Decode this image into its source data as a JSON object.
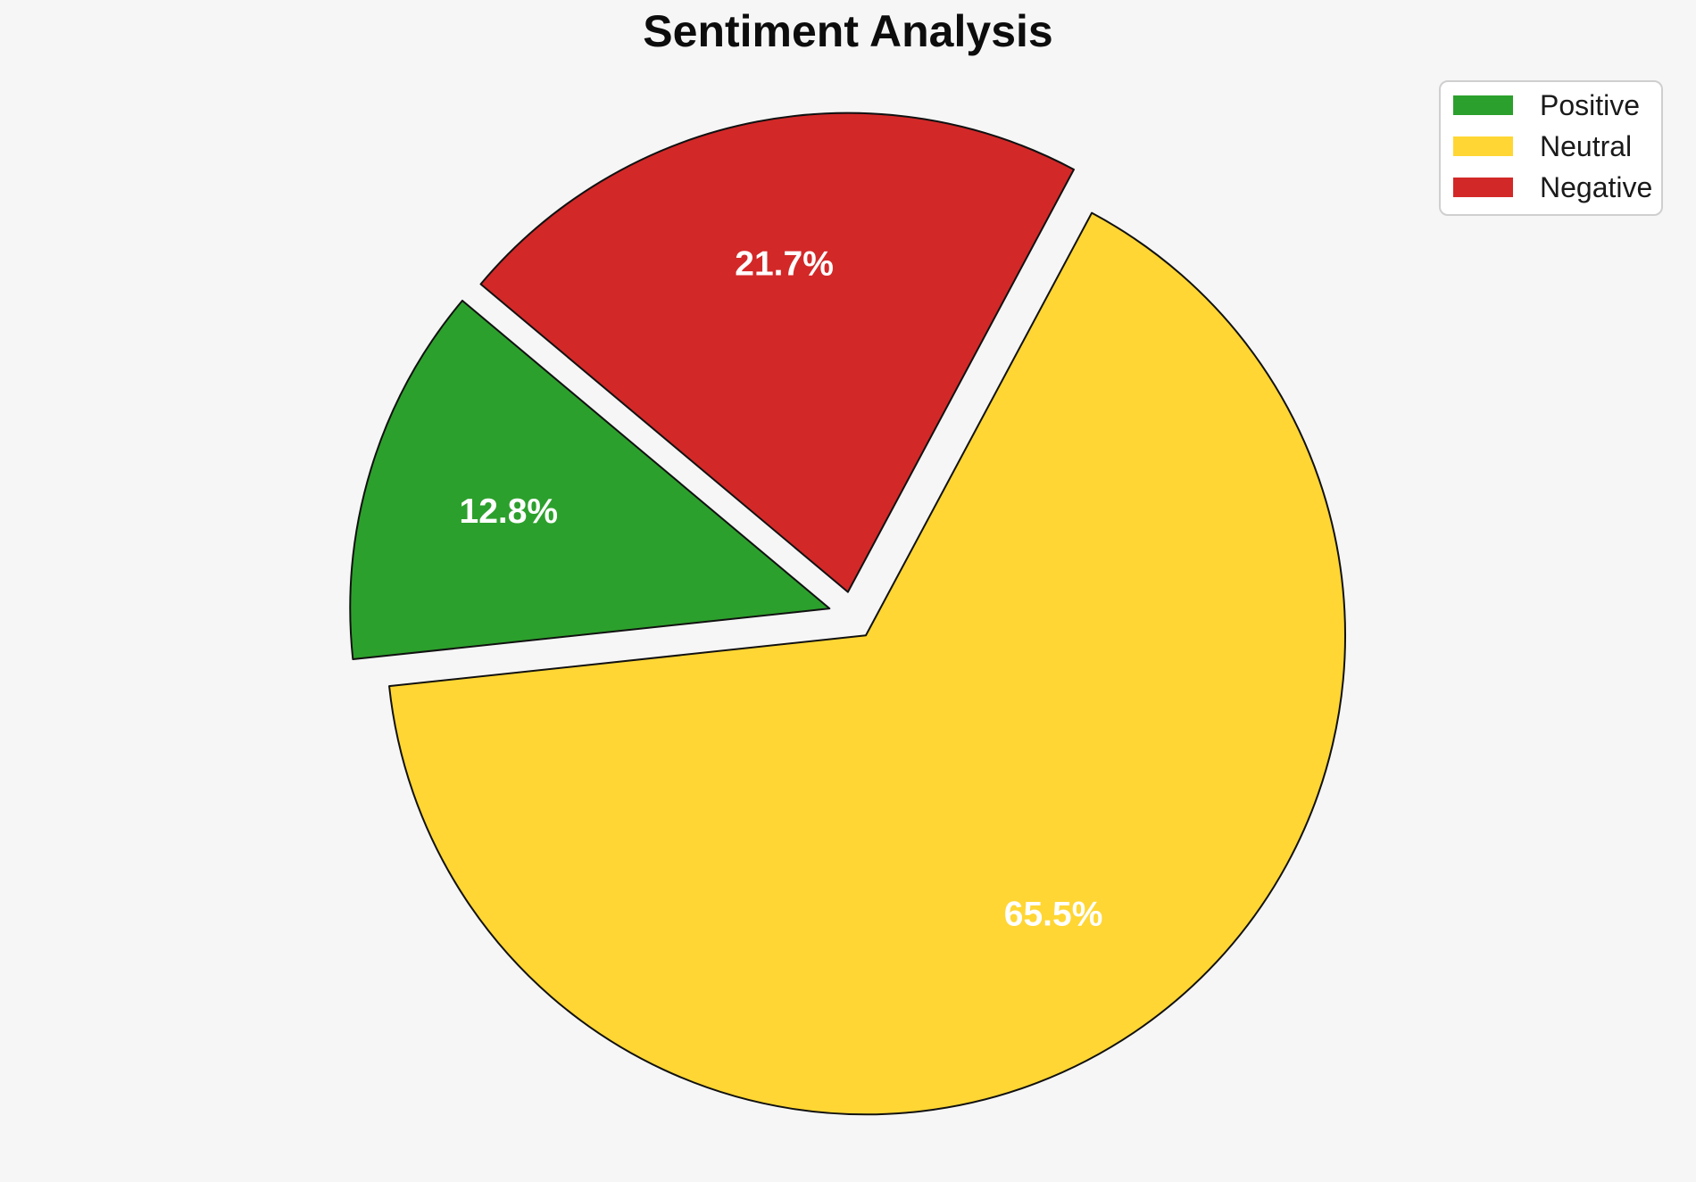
{
  "title": "Sentiment Analysis",
  "background_color": "#f6f6f6",
  "chart_data": {
    "type": "pie",
    "title": "Sentiment Analysis",
    "labels": [
      "Positive",
      "Neutral",
      "Negative"
    ],
    "values": [
      12.8,
      65.5,
      21.7
    ],
    "pct_labels": [
      "12.8%",
      "65.5%",
      "21.7%"
    ],
    "colors": [
      "#2CA02C",
      "#FFD633",
      "#D32828"
    ],
    "pct_label_color": "#ffffff",
    "edge_color": "#111111",
    "edge_width": 2,
    "start_angle": 140,
    "direction": "counterclockwise",
    "explode": 0.05,
    "pct_distance": 0.7,
    "legend_position": "upper right"
  },
  "legend": {
    "items": [
      {
        "label": "Positive",
        "color": "#2CA02C"
      },
      {
        "label": "Neutral",
        "color": "#FFD633"
      },
      {
        "label": "Negative",
        "color": "#D32828"
      }
    ]
  }
}
